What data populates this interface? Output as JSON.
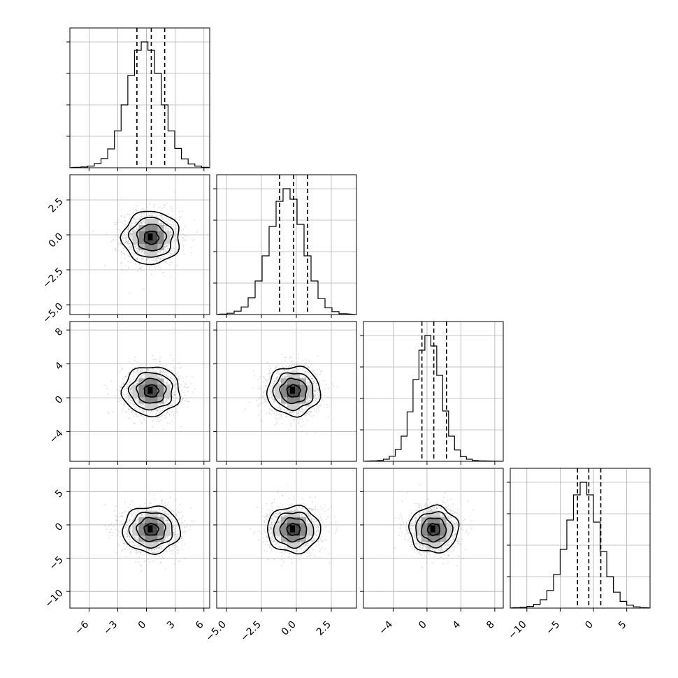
{
  "chart_data": {
    "type": "corner",
    "grid": true,
    "n_params": 4,
    "ranges": [
      [
        -8,
        6.6
      ],
      [
        -5.7,
        4.3
      ],
      [
        -7.5,
        9
      ],
      [
        -12.5,
        8.5
      ]
    ],
    "centers": [
      {
        "mean": 0.5,
        "sd": 1.5
      },
      {
        "mean": -0.2,
        "sd": 0.95
      },
      {
        "mean": 0.8,
        "sd": 1.45
      },
      {
        "mean": -0.7,
        "sd": 1.75
      }
    ],
    "quantiles": [
      [
        -1.0,
        0.5,
        1.9
      ],
      [
        -1.2,
        -0.2,
        0.8
      ],
      [
        -0.6,
        0.8,
        2.3
      ],
      [
        -2.4,
        -0.7,
        1.1
      ]
    ],
    "histograms": [
      {
        "bins": [
          -7.2,
          -6.5,
          -5.8,
          -5.1,
          -4.4,
          -3.7,
          -3.0,
          -2.3,
          -1.6,
          -0.9,
          -0.2,
          0.5,
          1.2,
          1.9,
          2.6,
          3.3,
          4.0,
          4.7,
          5.4,
          6.1
        ],
        "counts": [
          1,
          2,
          4,
          10,
          22,
          45,
          88,
          150,
          220,
          280,
          300,
          280,
          225,
          150,
          88,
          46,
          21,
          9,
          4,
          1
        ]
      },
      {
        "bins": [
          -5.2,
          -4.7,
          -4.2,
          -3.7,
          -3.2,
          -2.7,
          -2.2,
          -1.7,
          -1.2,
          -0.7,
          -0.2,
          0.3,
          0.8,
          1.3,
          1.8,
          2.3,
          2.8,
          3.3
        ],
        "counts": [
          1,
          3,
          8,
          18,
          40,
          80,
          140,
          210,
          270,
          300,
          275,
          215,
          140,
          80,
          38,
          16,
          7,
          2
        ]
      },
      {
        "bins": [
          -6.2,
          -5.5,
          -4.8,
          -4.1,
          -3.4,
          -2.7,
          -2.0,
          -1.3,
          -0.6,
          0.1,
          0.8,
          1.5,
          2.2,
          2.9,
          3.6,
          4.3,
          5.0,
          5.7,
          6.4
        ],
        "counts": [
          1,
          2,
          5,
          12,
          28,
          60,
          118,
          195,
          265,
          300,
          275,
          205,
          120,
          60,
          27,
          11,
          5,
          2,
          1
        ]
      },
      {
        "bins": [
          -11.5,
          -10.5,
          -9.5,
          -8.5,
          -7.5,
          -6.5,
          -5.5,
          -4.5,
          -3.5,
          -2.5,
          -1.5,
          -0.5,
          0.5,
          1.5,
          2.5,
          3.5,
          4.5,
          5.5,
          6.5,
          7.5
        ],
        "counts": [
          1,
          2,
          4,
          9,
          20,
          42,
          80,
          140,
          210,
          270,
          300,
          270,
          205,
          135,
          75,
          38,
          16,
          7,
          3,
          1
        ]
      }
    ],
    "x_ticks": [
      [
        "-6",
        "-3",
        "0",
        "3",
        "6"
      ],
      [
        "-5.0",
        "-2.5",
        "0.0",
        "2.5"
      ],
      [
        "-4",
        "0",
        "4",
        "8"
      ],
      [
        "-10",
        "-5",
        "0",
        "5"
      ]
    ],
    "y_ticks": [
      [],
      [
        "2.5",
        "0.0",
        "-2.5",
        "-5.0"
      ],
      [
        "8",
        "4",
        "0",
        "-4"
      ],
      [
        "5",
        "0",
        "-5",
        "-10"
      ]
    ],
    "xlabels": [
      "",
      "",
      "",
      ""
    ],
    "ylabels": [
      "",
      "",
      "",
      ""
    ],
    "title": ""
  }
}
